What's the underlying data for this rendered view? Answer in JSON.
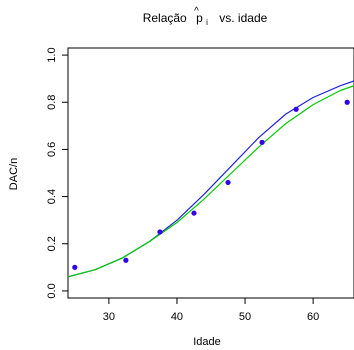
{
  "chart_data": {
    "type": "scatter",
    "title": {
      "prefix": "Relação",
      "symbol_base": "p",
      "symbol_hat": "^",
      "symbol_sub": "i",
      "suffix": "vs. idade"
    },
    "xlabel": "Idade",
    "ylabel": "DAC/n",
    "xlim": [
      24,
      66
    ],
    "ylim": [
      -0.03,
      1.03
    ],
    "x_ticks": [
      30,
      40,
      50,
      60
    ],
    "y_ticks": [
      0.0,
      0.2,
      0.4,
      0.6,
      0.8,
      1.0
    ],
    "x_tick_labels": [
      "30",
      "40",
      "50",
      "60"
    ],
    "y_tick_labels": [
      "0.0",
      "0.2",
      "0.4",
      "0.6",
      "0.8",
      "1.0"
    ],
    "grid": false,
    "points": {
      "color": "#3300ee",
      "x": [
        25.0,
        32.5,
        37.5,
        42.5,
        47.5,
        52.5,
        57.5,
        65.0
      ],
      "y": [
        0.1,
        0.13,
        0.25,
        0.33,
        0.46,
        0.63,
        0.77,
        0.8
      ]
    },
    "series": [
      {
        "color": "#2222dd",
        "x": [
          24,
          28,
          32,
          36,
          40,
          44,
          48,
          52,
          56,
          60,
          64,
          66
        ],
        "y": [
          0.06,
          0.09,
          0.14,
          0.21,
          0.3,
          0.41,
          0.53,
          0.65,
          0.75,
          0.82,
          0.87,
          0.89
        ]
      },
      {
        "color": "#00cc00",
        "x": [
          24,
          28,
          32,
          36,
          40,
          44,
          48,
          52,
          56,
          60,
          64,
          66
        ],
        "y": [
          0.06,
          0.09,
          0.14,
          0.21,
          0.29,
          0.39,
          0.5,
          0.61,
          0.71,
          0.79,
          0.85,
          0.87
        ]
      }
    ]
  }
}
